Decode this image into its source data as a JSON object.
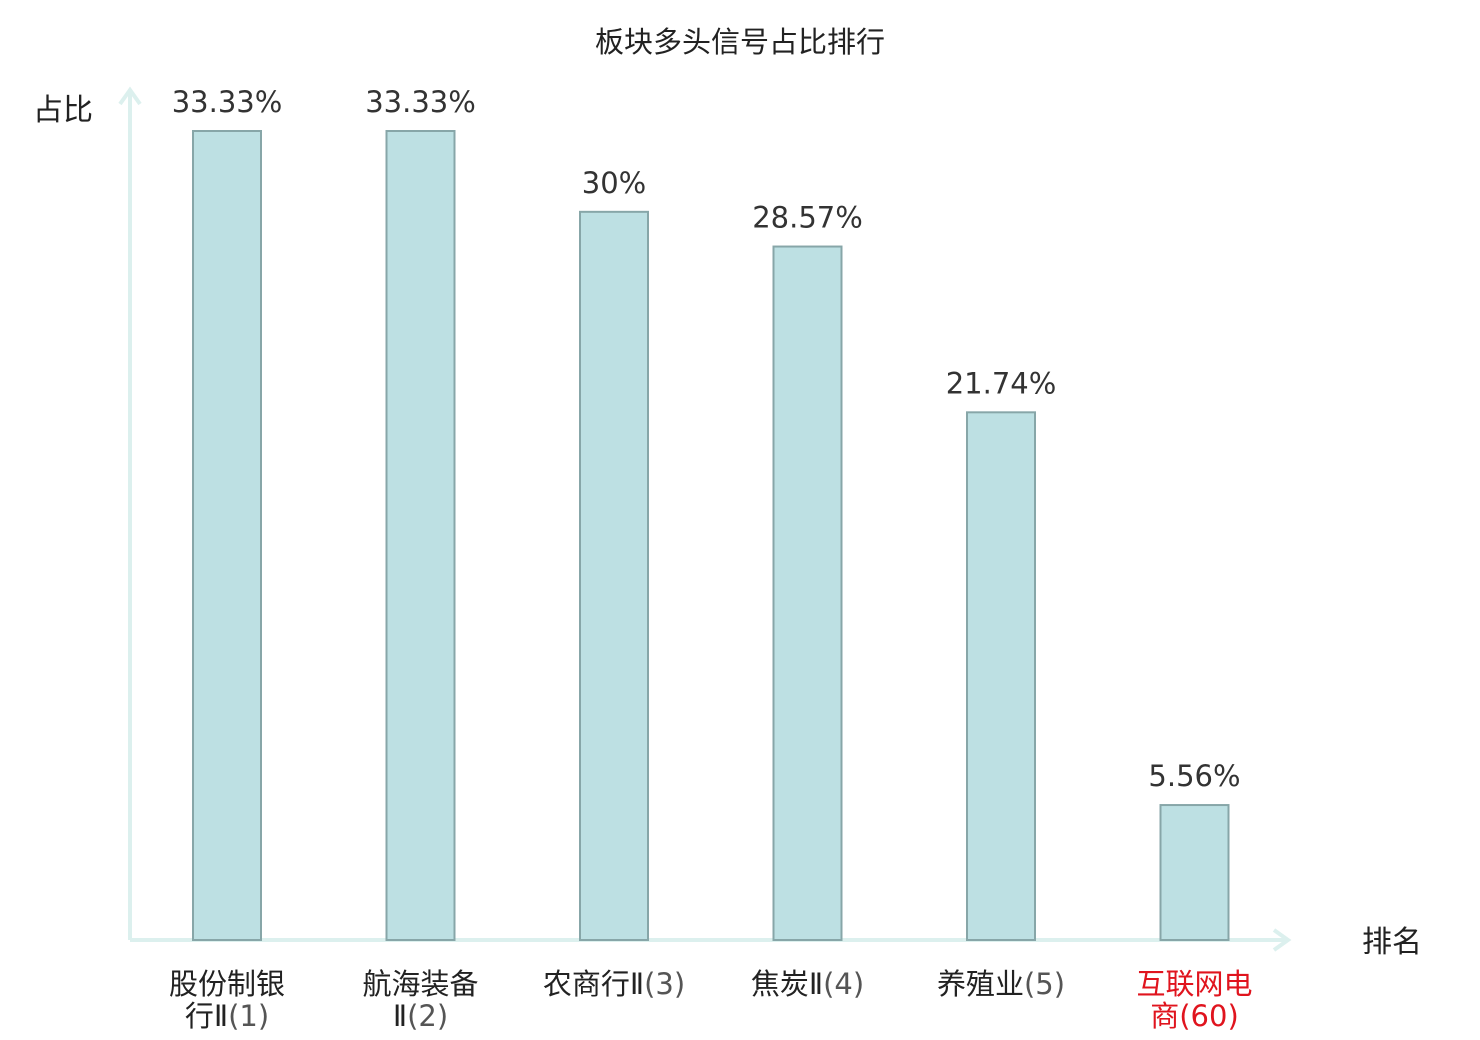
{
  "chart_data": {
    "type": "bar",
    "title": "板块多头信号占比排行",
    "ylabel": "占比",
    "xlabel": "排名",
    "categories": [
      {
        "line1": "股份制银",
        "line2_a": "行Ⅱ",
        "line2_b": "(1)",
        "highlight": false
      },
      {
        "line1": "航海装备",
        "line2_a": "Ⅱ",
        "line2_b": "(2)",
        "highlight": false
      },
      {
        "line1": "农商行Ⅱ",
        "line1_b": "(3)",
        "highlight": false
      },
      {
        "line1": "焦炭Ⅱ",
        "line1_b": "(4)",
        "highlight": false
      },
      {
        "line1": "养殖业",
        "line1_b": "(5)",
        "highlight": false
      },
      {
        "line1": "互联网电",
        "line2_a": "商",
        "line2_b": "(60)",
        "highlight": true
      }
    ],
    "values": [
      33.33,
      33.33,
      30,
      28.57,
      21.74,
      5.56
    ],
    "value_labels": [
      "33.33%",
      "33.33%",
      "30%",
      "28.57%",
      "21.74%",
      "5.56%"
    ],
    "ylim": [
      0,
      33.33
    ],
    "grid": false,
    "legend": "none"
  },
  "colors": {
    "bar_fill": "#bde0e3",
    "bar_stroke": "#87a6a8",
    "axis": "#dcf0ee",
    "text": "#222222",
    "value_text": "#333333",
    "highlight": "#e0141e",
    "category_number": "#555555"
  }
}
